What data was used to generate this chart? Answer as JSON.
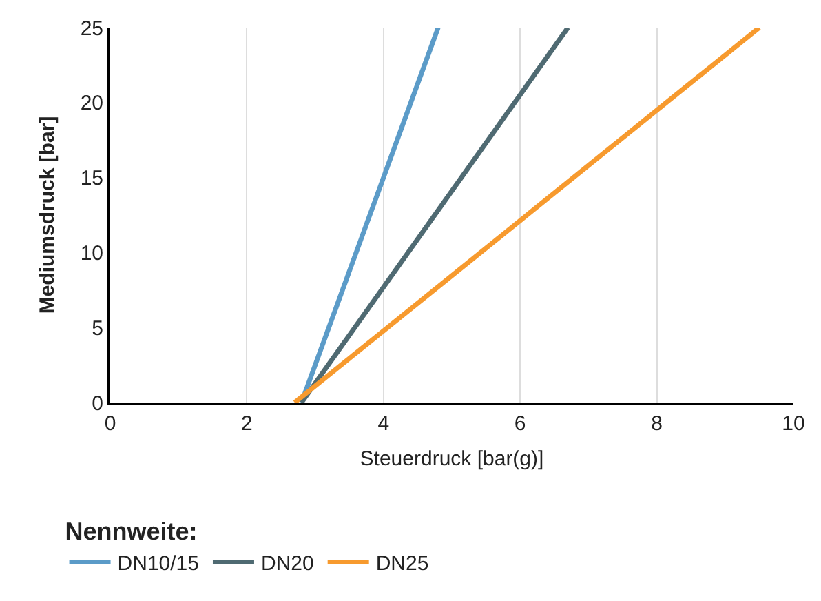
{
  "chart_data": {
    "type": "line",
    "xlabel": "Steuerdruck [bar(g)]",
    "ylabel": "Mediumsdruck [bar]",
    "legend_title": "Nennweite:",
    "series": [
      {
        "name": "DN10/15",
        "color": "#5b9bc8",
        "x": [
          2.8,
          4.8
        ],
        "values": [
          0,
          25
        ]
      },
      {
        "name": "DN20",
        "color": "#4f6a72",
        "x": [
          2.8,
          6.7
        ],
        "values": [
          0,
          25
        ]
      },
      {
        "name": "DN25",
        "color": "#f79a2e",
        "x": [
          2.7,
          9.5
        ],
        "values": [
          0,
          25
        ]
      }
    ],
    "xlim": [
      0,
      10
    ],
    "xticks": [
      0,
      2,
      4,
      6,
      8,
      10
    ],
    "ylim": [
      0,
      25
    ],
    "yticks": [
      0,
      5,
      10,
      15,
      20,
      25
    ],
    "grid": "x",
    "legend": "bottom left",
    "marker": "none",
    "line_style": "solid"
  }
}
